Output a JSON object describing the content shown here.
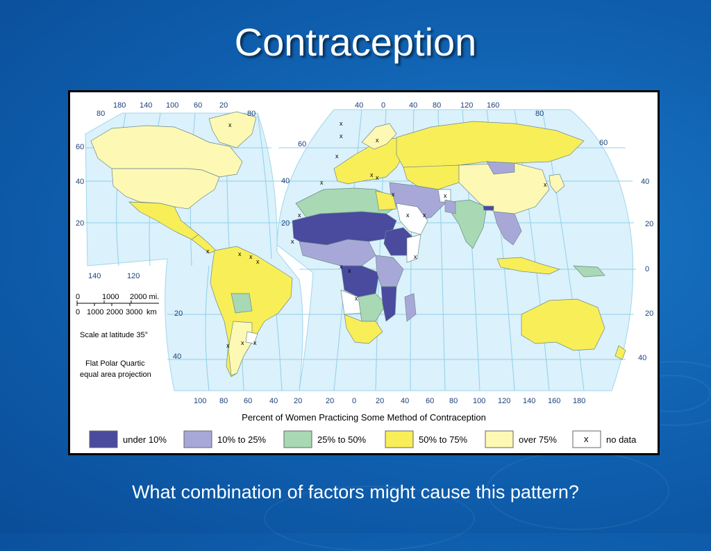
{
  "slide": {
    "title": "Contraception",
    "question": "What combination of factors might cause this pattern?"
  },
  "map": {
    "legend_title": "Percent of Women Practicing Some Method of Contraception",
    "legend": [
      {
        "label": "under 10%",
        "color": "#4a4a9e"
      },
      {
        "label": "10% to 25%",
        "color": "#a8a8d8"
      },
      {
        "label": "25% to 50%",
        "color": "#a8d8b4"
      },
      {
        "label": "50% to 75%",
        "color": "#f8ee58"
      },
      {
        "label": "over 75%",
        "color": "#fdf8b4"
      },
      {
        "label": "no data",
        "swatch_text": "x",
        "color": "#ffffff"
      }
    ],
    "scale": {
      "mi_labels": [
        "0",
        "1000",
        "2000 mi."
      ],
      "km_labels": [
        "0",
        "1000",
        "2000",
        "3000",
        "km"
      ],
      "note": "Scale at latitude 35°"
    },
    "projection": [
      "Flat Polar Quartic",
      "equal area projection"
    ],
    "top_longitudes_west": [
      "180",
      "140",
      "100",
      "60",
      "20"
    ],
    "top_longitudes_east": [
      "40",
      "0",
      "40",
      "80",
      "120",
      "160"
    ],
    "bottom_longitudes_west": [
      "140",
      "120"
    ],
    "bottom_longitudes_main": [
      "100",
      "80",
      "60",
      "40",
      "20",
      "20",
      "0",
      "20",
      "40",
      "60",
      "80",
      "100",
      "120",
      "140",
      "160",
      "180"
    ],
    "latitudes_left": [
      "80",
      "60",
      "40",
      "20"
    ],
    "latitudes_left_south": [
      "20",
      "40"
    ],
    "latitudes_right": [
      "80",
      "60",
      "40",
      "20",
      "0",
      "20",
      "40"
    ],
    "no_data_marker": "x"
  }
}
